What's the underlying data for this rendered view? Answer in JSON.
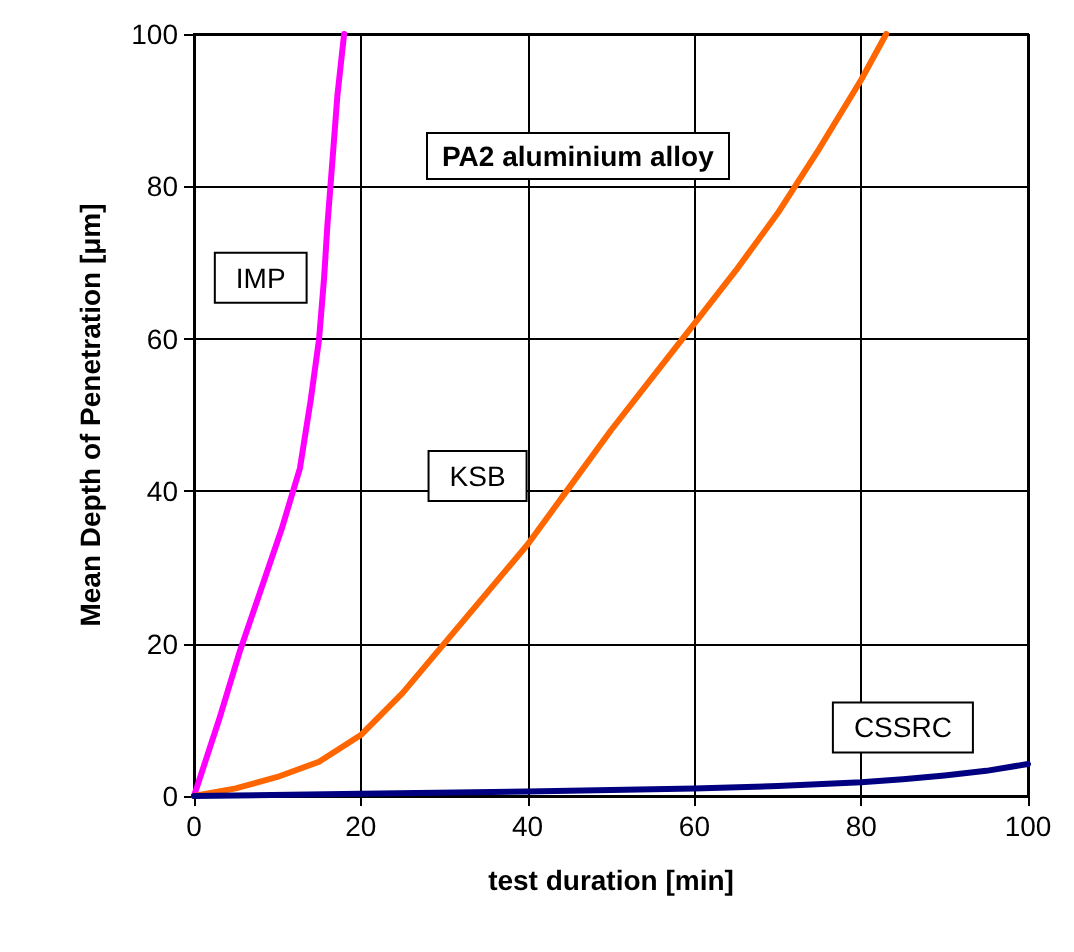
{
  "chart_data": {
    "type": "line",
    "title": "PA2 aluminium alloy",
    "xlabel": "test duration [min]",
    "ylabel": "Mean Depth of Penetration [μm]",
    "xlim": [
      0,
      100
    ],
    "xticks": [
      0,
      20,
      40,
      60,
      80,
      100
    ],
    "ylim": [
      0,
      100
    ],
    "yticks": [
      0,
      20,
      40,
      60,
      80,
      100
    ],
    "grid": true,
    "marker": "none",
    "line_style": "solid",
    "series": [
      {
        "name": "IMP",
        "color": "#ff00ff",
        "x": [
          0,
          3,
          5.5,
          8,
          10.5,
          12.7,
          14,
          15,
          15.6,
          16,
          16.5,
          17.2,
          18
        ],
        "values": [
          0,
          10,
          19,
          27,
          35,
          43,
          52,
          60,
          68,
          75,
          82,
          92,
          100
        ]
      },
      {
        "name": "KSB",
        "color": "#ff6600",
        "x": [
          0,
          5,
          10,
          15,
          20,
          25,
          30,
          35,
          40,
          45,
          50,
          55,
          60,
          65,
          70,
          75,
          80,
          83
        ],
        "values": [
          0,
          1,
          2.5,
          4.5,
          8,
          13.5,
          20,
          26.5,
          33,
          40.5,
          48,
          55,
          62,
          69,
          76.5,
          85,
          94,
          100
        ]
      },
      {
        "name": "CSSRC",
        "color": "#000080",
        "x": [
          0,
          20,
          40,
          60,
          70,
          80,
          85,
          90,
          95,
          100
        ],
        "values": [
          0,
          0.3,
          0.6,
          1,
          1.3,
          1.8,
          2.2,
          2.7,
          3.3,
          4.2
        ]
      }
    ]
  }
}
